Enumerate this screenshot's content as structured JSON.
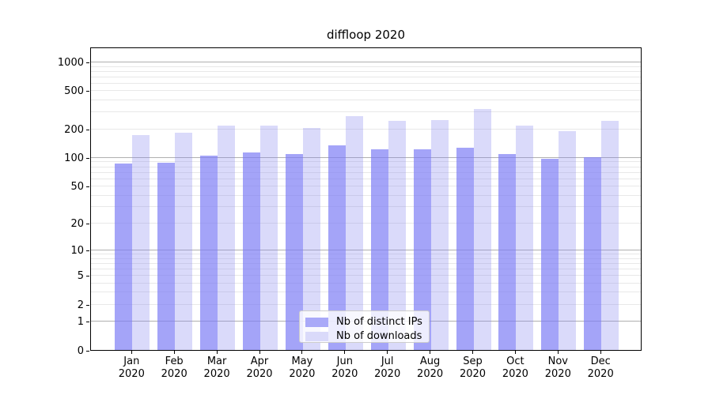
{
  "chart_data": {
    "type": "bar",
    "title": "diffloop 2020",
    "categories": [
      "Jan",
      "Feb",
      "Mar",
      "Apr",
      "May",
      "Jun",
      "Jul",
      "Aug",
      "Sep",
      "Oct",
      "Nov",
      "Dec"
    ],
    "category_year": "2020",
    "series": [
      {
        "name": "Nb of distinct IPs",
        "fill": "rgba(125,125,245,0.7)",
        "legend_color": "#a9a9f8",
        "values": [
          86,
          88,
          104,
          113,
          109,
          134,
          122,
          123,
          127,
          110,
          98,
          101
        ]
      },
      {
        "name": "Nb of downloads",
        "fill": "rgba(132,132,238,0.3)",
        "legend_color": "#dadafa",
        "values": [
          173,
          181,
          216,
          218,
          206,
          274,
          241,
          246,
          323,
          218,
          191,
          241
        ]
      }
    ],
    "y_axis": {
      "scale": "log1p",
      "ticks": [
        0,
        1,
        2,
        5,
        10,
        20,
        50,
        100,
        200,
        500,
        1000
      ],
      "axis_max": 1446,
      "major_gridlines": [
        1,
        10,
        100,
        1000
      ],
      "minor_gridlines": [
        2,
        3,
        4,
        5,
        6,
        7,
        8,
        9,
        20,
        30,
        40,
        50,
        60,
        70,
        80,
        90,
        200,
        300,
        400,
        500,
        600,
        700,
        800,
        900
      ]
    },
    "legend": {
      "position": "bottom-center",
      "entries": [
        "Nb of distinct IPs",
        "Nb of downloads"
      ]
    },
    "colors": {
      "major_grid": "#b0b0b0",
      "minor_grid": "#e8e8e8",
      "spine": "#000000",
      "background": "#ffffff"
    }
  }
}
